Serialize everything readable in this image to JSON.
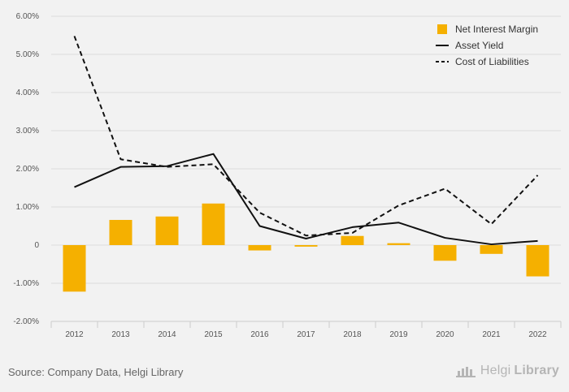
{
  "chart_data": {
    "type": "bar+line",
    "categories": [
      "2012",
      "2013",
      "2014",
      "2015",
      "2016",
      "2017",
      "2018",
      "2019",
      "2020",
      "2021",
      "2022"
    ],
    "series": [
      {
        "name": "Net Interest Margin",
        "kind": "bar",
        "color": "#f5b000",
        "values": [
          -1.22,
          0.66,
          0.75,
          1.09,
          -0.14,
          -0.04,
          0.24,
          0.05,
          -0.41,
          -0.23,
          -0.82
        ]
      },
      {
        "name": "Asset Yield",
        "kind": "line",
        "style": "solid",
        "color": "#111111",
        "values": [
          1.52,
          2.05,
          2.07,
          2.39,
          0.5,
          0.17,
          0.47,
          0.59,
          0.19,
          0.02,
          0.11
        ]
      },
      {
        "name": "Cost of Liabilities",
        "kind": "line",
        "style": "dashed",
        "color": "#111111",
        "values": [
          5.48,
          2.25,
          2.05,
          2.12,
          0.85,
          0.25,
          0.32,
          1.04,
          1.48,
          0.55,
          1.83
        ]
      }
    ],
    "ylim": [
      -2,
      6
    ],
    "yticks": [
      -2,
      -1,
      0,
      1,
      2,
      3,
      4,
      5,
      6
    ],
    "ytick_labels": [
      "-2.00%",
      "-1.00%",
      "0",
      "1.00%",
      "2.00%",
      "3.00%",
      "4.00%",
      "5.00%",
      "6.00%"
    ],
    "grid": true,
    "legend_position": "top-right"
  },
  "footer": {
    "source": "Source: Company Data, Helgi Library",
    "brand_part1": "Helgi",
    "brand_part2": "Library"
  }
}
